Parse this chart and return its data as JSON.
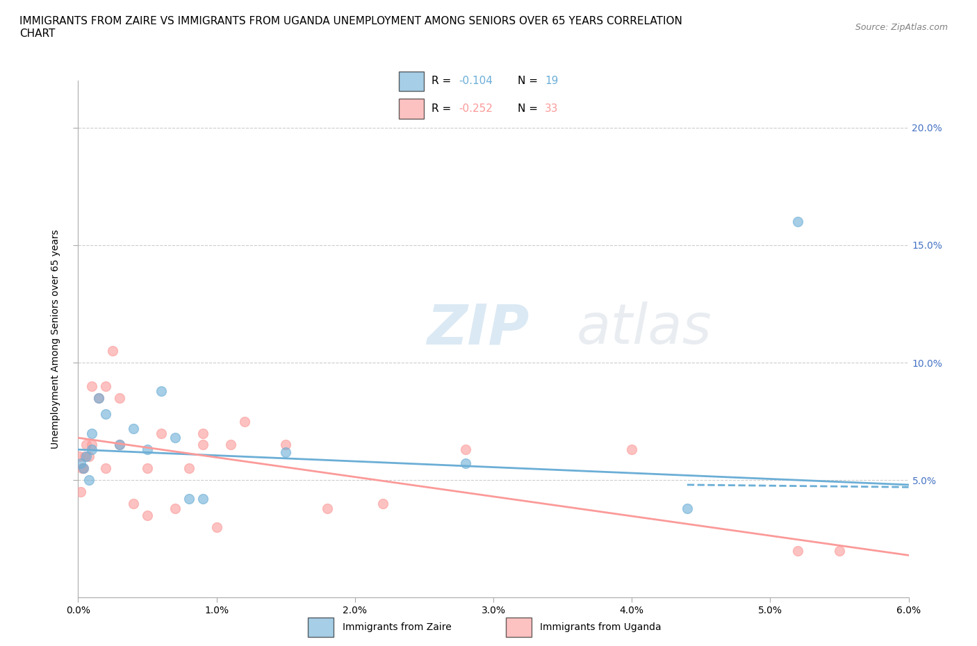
{
  "title": "IMMIGRANTS FROM ZAIRE VS IMMIGRANTS FROM UGANDA UNEMPLOYMENT AMONG SENIORS OVER 65 YEARS CORRELATION\nCHART",
  "source": "Source: ZipAtlas.com",
  "ylabel": "Unemployment Among Seniors over 65 years",
  "watermark": "ZIPatlas",
  "zaire_color": "#6baed6",
  "uganda_color": "#fb9a99",
  "zaire_label": "Immigrants from Zaire",
  "uganda_label": "Immigrants from Uganda",
  "zaire_R": -0.104,
  "zaire_N": 19,
  "uganda_R": -0.252,
  "uganda_N": 33,
  "xlim": [
    0.0,
    0.06
  ],
  "ylim": [
    0.0,
    0.22
  ],
  "xticks": [
    0.0,
    0.01,
    0.02,
    0.03,
    0.04,
    0.05,
    0.06
  ],
  "yticks": [
    0.05,
    0.1,
    0.15,
    0.2
  ],
  "zaire_x": [
    0.0002,
    0.0004,
    0.0006,
    0.0008,
    0.001,
    0.001,
    0.0015,
    0.002,
    0.003,
    0.004,
    0.005,
    0.006,
    0.007,
    0.008,
    0.009,
    0.015,
    0.028,
    0.044,
    0.052
  ],
  "zaire_y": [
    0.057,
    0.055,
    0.06,
    0.05,
    0.07,
    0.063,
    0.085,
    0.078,
    0.065,
    0.072,
    0.063,
    0.088,
    0.068,
    0.042,
    0.042,
    0.062,
    0.057,
    0.038,
    0.16
  ],
  "uganda_x": [
    0.0001,
    0.0002,
    0.0003,
    0.0004,
    0.0005,
    0.0006,
    0.0008,
    0.001,
    0.001,
    0.0015,
    0.002,
    0.002,
    0.0025,
    0.003,
    0.003,
    0.004,
    0.005,
    0.005,
    0.006,
    0.007,
    0.008,
    0.009,
    0.009,
    0.01,
    0.011,
    0.012,
    0.015,
    0.018,
    0.022,
    0.028,
    0.04,
    0.052,
    0.055
  ],
  "uganda_y": [
    0.06,
    0.045,
    0.055,
    0.055,
    0.06,
    0.065,
    0.06,
    0.09,
    0.065,
    0.085,
    0.055,
    0.09,
    0.105,
    0.085,
    0.065,
    0.04,
    0.035,
    0.055,
    0.07,
    0.038,
    0.055,
    0.07,
    0.065,
    0.03,
    0.065,
    0.075,
    0.065,
    0.038,
    0.04,
    0.063,
    0.063,
    0.02,
    0.02
  ],
  "background_color": "#ffffff",
  "grid_color": "#cccccc",
  "title_fontsize": 11,
  "axis_label_fontsize": 10,
  "tick_fontsize": 10,
  "legend_fontsize": 11,
  "source_fontsize": 9,
  "right_ytick_color": "#4472c4",
  "marker_size": 100,
  "zaire_trend_x": [
    0.0,
    0.06
  ],
  "zaire_trend_y": [
    0.063,
    0.048
  ],
  "uganda_trend_x": [
    0.0,
    0.06
  ],
  "uganda_trend_y": [
    0.068,
    0.018
  ]
}
